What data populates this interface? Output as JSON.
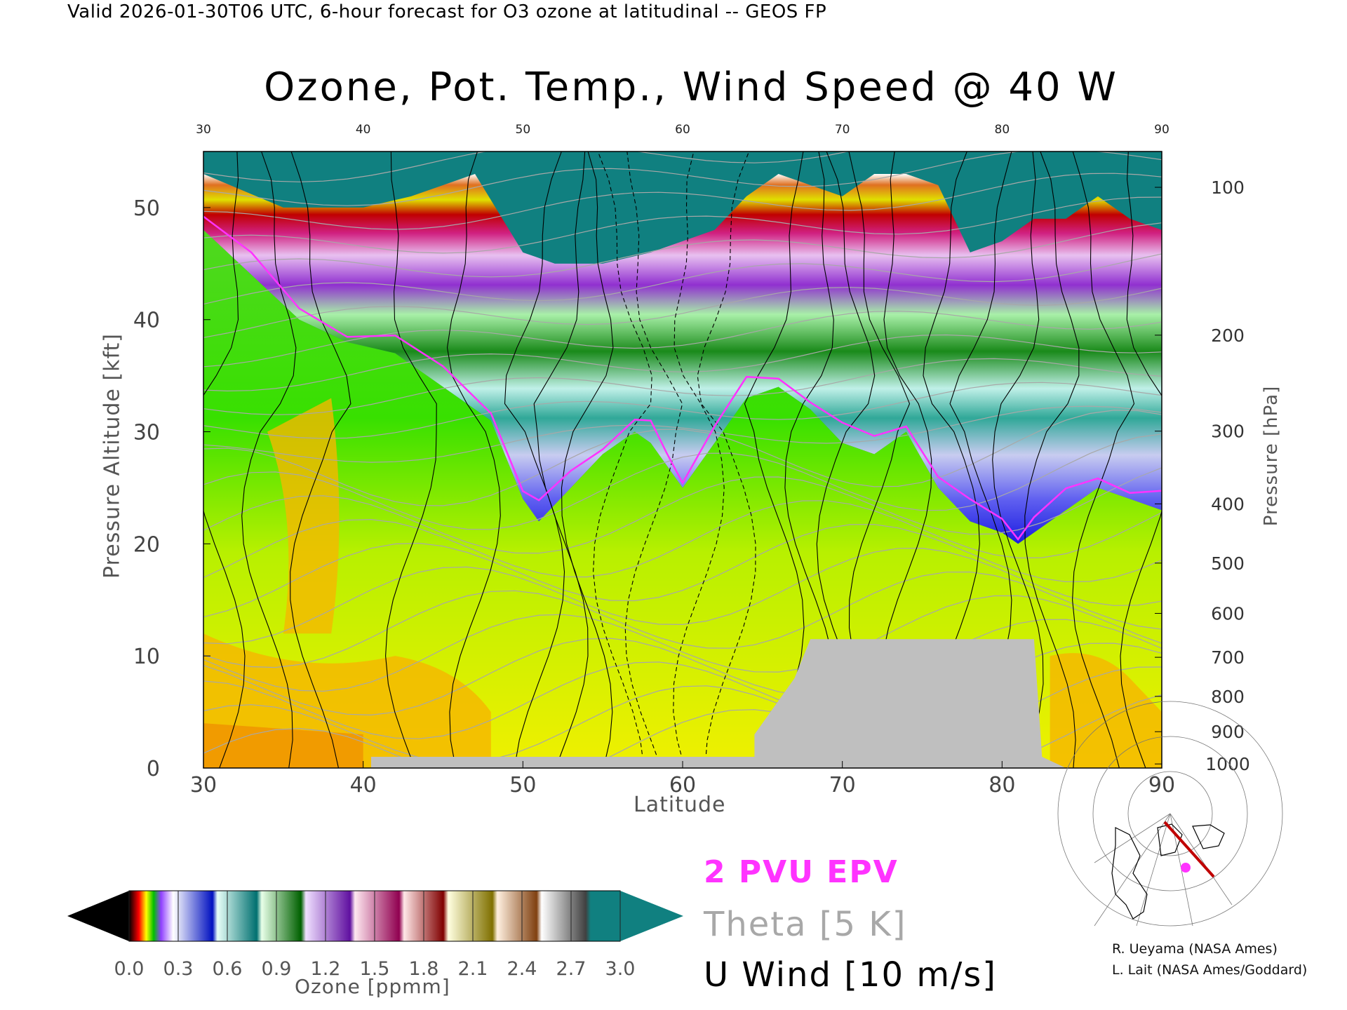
{
  "header": {
    "text": "Valid 2026-01-30T06 UTC, 6-hour forecast for O3 ozone at latitudinal -- GEOS FP"
  },
  "chart_data": {
    "type": "heatmap",
    "title": "Ozone, Pot. Temp., Wind Speed @ 40 W",
    "xlabel": "Latitude",
    "ylabel": "Pressure Altitude [kft]",
    "y2label": "Pressure [hPa]",
    "xlim": [
      30,
      90
    ],
    "ylim": [
      0,
      55
    ],
    "x_ticks": [
      "30",
      "40",
      "50",
      "60",
      "70",
      "80",
      "90"
    ],
    "y_ticks": [
      "0",
      "10",
      "20",
      "30",
      "40",
      "50"
    ],
    "y_tick_values": [
      0,
      10,
      20,
      30,
      40,
      50
    ],
    "y2_ticks": [
      "100",
      "200",
      "300",
      "400",
      "500",
      "600",
      "700",
      "800",
      "900",
      "1000"
    ],
    "y2_tick_values": [
      100,
      200,
      300,
      400,
      500,
      600,
      700,
      800,
      900,
      1000
    ],
    "tropopause_boundary": {
      "lat": [
        30,
        33,
        36,
        39,
        42,
        45,
        48,
        50,
        51,
        53,
        55,
        57,
        58,
        59,
        60,
        62,
        64,
        66,
        68,
        70,
        72,
        74,
        76,
        78,
        80,
        81,
        82,
        84,
        86,
        88,
        90
      ],
      "kft": [
        48,
        44,
        40,
        38,
        37,
        34,
        31,
        24,
        22,
        25,
        28,
        30,
        29,
        27,
        25,
        29,
        33,
        34,
        32,
        29,
        28,
        30,
        25,
        22,
        21,
        20,
        21,
        23,
        25,
        24,
        23
      ]
    },
    "ozone_layer_tops": {
      "lat": [
        30,
        35,
        40,
        43,
        45,
        47,
        50,
        52,
        55,
        58,
        60,
        62,
        64,
        66,
        68,
        70,
        72,
        74,
        76,
        78,
        80,
        82,
        84,
        86,
        88,
        90
      ],
      "kft": [
        53,
        50,
        50,
        51,
        52,
        53,
        46,
        45,
        45,
        46,
        47,
        48,
        51,
        53,
        52,
        51,
        53,
        53,
        52,
        46,
        47,
        49,
        49,
        51,
        49,
        48
      ]
    },
    "terrain": {
      "lat": [
        30,
        40.5,
        40.5,
        64.5,
        64.5,
        66,
        67,
        68,
        82,
        82.5,
        84,
        90
      ],
      "kft": [
        0,
        0,
        1,
        1,
        3,
        6,
        8,
        11.5,
        11.5,
        1,
        0,
        0
      ]
    },
    "colorbar": {
      "label": "Ozone [ppmm]",
      "ticks": [
        "0.0",
        "0.3",
        "0.6",
        "0.9",
        "1.2",
        "1.5",
        "1.8",
        "2.1",
        "2.4",
        "2.7",
        "3.0"
      ],
      "min": 0.0,
      "max": 3.0
    }
  },
  "legend": {
    "epv": "2 PVU EPV",
    "theta": "Theta [5 K]",
    "wind": "U Wind [10 m/s]"
  },
  "colors": {
    "epv": "#ff33ff",
    "theta": "#a8a8a8",
    "wind": "#000000",
    "terrain": "#bfbfbf",
    "stratosphere_teal": "#108080"
  },
  "credits": {
    "line1": "R. Ueyama (NASA Ames)",
    "line2": "L. Lait (NASA Ames/Goddard)"
  }
}
